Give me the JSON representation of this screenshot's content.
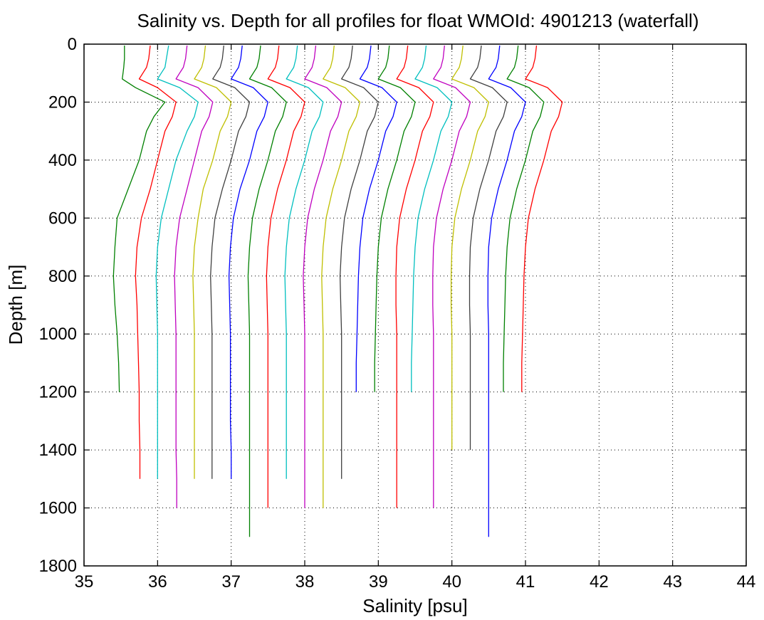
{
  "chart_data": {
    "type": "line",
    "title": "Salinity vs. Depth for all profiles for float WMOId: 4901213 (waterfall)",
    "xlabel": "Salinity [psu]",
    "ylabel": "Depth [m]",
    "xlim": [
      35,
      44
    ],
    "ylim": [
      0,
      1800
    ],
    "y_reversed": true,
    "grid": true,
    "xticks": [
      "35",
      "36",
      "37",
      "38",
      "39",
      "40",
      "41",
      "42",
      "43",
      "44"
    ],
    "yticks": [
      "0",
      "200",
      "400",
      "600",
      "800",
      "1000",
      "1200",
      "1400",
      "1600",
      "1800"
    ],
    "depth": [
      5,
      50,
      80,
      100,
      120,
      150,
      200,
      250,
      300,
      400,
      500,
      600,
      700,
      800,
      900,
      1000,
      1100,
      1200,
      1300,
      1400,
      1500,
      1600,
      1700
    ],
    "series": [
      {
        "color": "#008000",
        "values": [
          35.55,
          35.55,
          35.54,
          35.53,
          35.52,
          35.7,
          36.1,
          35.95,
          35.85,
          35.75,
          35.6,
          35.45,
          35.42,
          35.4,
          35.42,
          35.45,
          35.47,
          35.48,
          null,
          null,
          null,
          null,
          null
        ]
      },
      {
        "color": "#ff0000",
        "values": [
          35.9,
          35.88,
          35.85,
          35.8,
          35.75,
          36.0,
          36.25,
          36.2,
          36.1,
          36.0,
          35.9,
          35.78,
          35.72,
          35.7,
          35.72,
          35.73,
          35.74,
          35.75,
          35.75,
          35.76,
          35.76,
          null,
          null
        ]
      },
      {
        "color": "#00bfbf",
        "values": [
          36.15,
          36.12,
          36.1,
          36.05,
          36.0,
          36.3,
          36.55,
          36.5,
          36.4,
          36.25,
          36.15,
          36.05,
          36.0,
          35.98,
          35.99,
          36.0,
          36.0,
          36.0,
          36.0,
          36.0,
          36.0,
          null,
          null
        ]
      },
      {
        "color": "#bf00bf",
        "values": [
          36.4,
          36.38,
          36.35,
          36.3,
          36.25,
          36.55,
          36.75,
          36.7,
          36.6,
          36.5,
          36.4,
          36.3,
          36.25,
          36.23,
          36.24,
          36.25,
          36.25,
          36.25,
          36.25,
          36.25,
          36.26,
          36.26,
          null
        ]
      },
      {
        "color": "#bfbf00",
        "values": [
          36.65,
          36.63,
          36.6,
          36.55,
          36.5,
          36.8,
          37.0,
          36.95,
          36.85,
          36.75,
          36.62,
          36.55,
          36.5,
          36.48,
          36.49,
          36.5,
          36.5,
          36.5,
          36.5,
          36.5,
          36.5,
          null,
          null
        ]
      },
      {
        "color": "#404040",
        "values": [
          36.9,
          36.88,
          36.85,
          36.8,
          36.75,
          37.05,
          37.25,
          37.2,
          37.1,
          37.0,
          36.88,
          36.78,
          36.74,
          36.72,
          36.73,
          36.74,
          36.74,
          36.74,
          36.74,
          36.74,
          36.74,
          null,
          null
        ]
      },
      {
        "color": "#0000ff",
        "values": [
          37.15,
          37.13,
          37.1,
          37.05,
          37.0,
          37.3,
          37.5,
          37.45,
          37.35,
          37.25,
          37.12,
          37.03,
          36.99,
          36.97,
          36.98,
          36.99,
          36.99,
          36.99,
          36.99,
          37.0,
          37.0,
          null,
          null
        ]
      },
      {
        "color": "#008000",
        "values": [
          37.4,
          37.38,
          37.35,
          37.3,
          37.25,
          37.55,
          37.75,
          37.7,
          37.6,
          37.5,
          37.38,
          37.29,
          37.25,
          37.23,
          37.24,
          37.25,
          37.25,
          37.25,
          37.25,
          37.25,
          37.25,
          37.25,
          37.25
        ]
      },
      {
        "color": "#ff0000",
        "values": [
          37.65,
          37.63,
          37.6,
          37.55,
          37.5,
          37.8,
          38.0,
          37.95,
          37.85,
          37.75,
          37.63,
          37.54,
          37.5,
          37.48,
          37.49,
          37.5,
          37.5,
          37.5,
          37.5,
          37.5,
          37.5,
          37.5,
          null
        ]
      },
      {
        "color": "#00bfbf",
        "values": [
          37.9,
          37.88,
          37.85,
          37.8,
          37.75,
          38.05,
          38.25,
          38.2,
          38.1,
          38.0,
          37.88,
          37.79,
          37.75,
          37.73,
          37.74,
          37.75,
          37.75,
          37.75,
          37.75,
          37.75,
          37.75,
          null,
          null
        ]
      },
      {
        "color": "#bf00bf",
        "values": [
          38.15,
          38.13,
          38.1,
          38.05,
          38.0,
          38.3,
          38.5,
          38.45,
          38.35,
          38.25,
          38.13,
          38.04,
          38.0,
          37.98,
          37.99,
          38.0,
          38.0,
          38.0,
          38.0,
          38.0,
          38.0,
          38.0,
          null
        ]
      },
      {
        "color": "#bfbf00",
        "values": [
          38.4,
          38.38,
          38.35,
          38.3,
          38.25,
          38.55,
          38.75,
          38.7,
          38.6,
          38.5,
          38.38,
          38.29,
          38.25,
          38.23,
          38.24,
          38.25,
          38.25,
          38.25,
          38.25,
          38.25,
          38.25,
          38.25,
          null
        ]
      },
      {
        "color": "#404040",
        "values": [
          38.65,
          38.63,
          38.6,
          38.55,
          38.5,
          38.8,
          39.0,
          38.95,
          38.85,
          38.75,
          38.63,
          38.54,
          38.5,
          38.48,
          38.49,
          38.5,
          38.5,
          38.5,
          38.5,
          38.5,
          38.5,
          null,
          null
        ]
      },
      {
        "color": "#0000ff",
        "values": [
          38.9,
          38.88,
          38.85,
          38.8,
          38.75,
          39.05,
          39.25,
          39.2,
          39.1,
          39.0,
          38.88,
          38.79,
          38.75,
          38.73,
          38.72,
          38.71,
          38.7,
          38.7,
          null,
          null,
          null,
          null,
          null
        ]
      },
      {
        "color": "#008000",
        "values": [
          39.15,
          39.13,
          39.1,
          39.05,
          39.0,
          39.3,
          39.5,
          39.45,
          39.35,
          39.25,
          39.13,
          39.04,
          39.0,
          38.98,
          38.97,
          38.96,
          38.95,
          38.95,
          null,
          null,
          null,
          null,
          null
        ]
      },
      {
        "color": "#ff0000",
        "values": [
          39.4,
          39.38,
          39.35,
          39.3,
          39.25,
          39.55,
          39.75,
          39.7,
          39.6,
          39.5,
          39.38,
          39.29,
          39.25,
          39.24,
          39.24,
          39.25,
          39.25,
          39.25,
          39.25,
          39.25,
          39.25,
          39.25,
          null
        ]
      },
      {
        "color": "#00bfbf",
        "values": [
          39.65,
          39.63,
          39.6,
          39.55,
          39.5,
          39.8,
          40.0,
          39.95,
          39.85,
          39.75,
          39.63,
          39.54,
          39.5,
          39.48,
          39.47,
          39.46,
          39.45,
          39.45,
          null,
          null,
          null,
          null,
          null
        ]
      },
      {
        "color": "#bf00bf",
        "values": [
          39.9,
          39.88,
          39.85,
          39.8,
          39.75,
          40.05,
          40.25,
          40.2,
          40.1,
          40.0,
          39.88,
          39.79,
          39.75,
          39.74,
          39.74,
          39.75,
          39.75,
          39.75,
          39.75,
          39.75,
          39.75,
          39.75,
          null
        ]
      },
      {
        "color": "#bfbf00",
        "values": [
          40.15,
          40.13,
          40.1,
          40.05,
          40.0,
          40.3,
          40.5,
          40.45,
          40.35,
          40.25,
          40.13,
          40.04,
          40.0,
          39.99,
          39.99,
          40.0,
          40.0,
          40.0,
          40.0,
          40.0,
          null,
          null,
          null
        ]
      },
      {
        "color": "#404040",
        "values": [
          40.4,
          40.38,
          40.35,
          40.3,
          40.25,
          40.55,
          40.75,
          40.7,
          40.6,
          40.5,
          40.38,
          40.29,
          40.25,
          40.24,
          40.24,
          40.25,
          40.25,
          40.25,
          40.25,
          40.25,
          null,
          null,
          null
        ]
      },
      {
        "color": "#0000ff",
        "values": [
          40.65,
          40.63,
          40.6,
          40.55,
          40.5,
          40.8,
          41.0,
          40.95,
          40.85,
          40.75,
          40.63,
          40.54,
          40.5,
          40.49,
          40.49,
          40.5,
          40.5,
          40.5,
          40.5,
          40.5,
          40.5,
          40.5,
          40.5
        ]
      },
      {
        "color": "#008000",
        "values": [
          40.9,
          40.88,
          40.85,
          40.8,
          40.75,
          41.05,
          41.25,
          41.2,
          41.1,
          41.0,
          40.88,
          40.79,
          40.75,
          40.73,
          40.72,
          40.71,
          40.7,
          40.7,
          null,
          null,
          null,
          null,
          null
        ]
      },
      {
        "color": "#ff0000",
        "values": [
          41.15,
          41.13,
          41.1,
          41.05,
          41.0,
          41.3,
          41.5,
          41.45,
          41.35,
          41.25,
          41.13,
          41.04,
          41.0,
          40.98,
          40.97,
          40.96,
          40.95,
          40.95,
          null,
          null,
          null,
          null,
          null
        ]
      }
    ]
  }
}
